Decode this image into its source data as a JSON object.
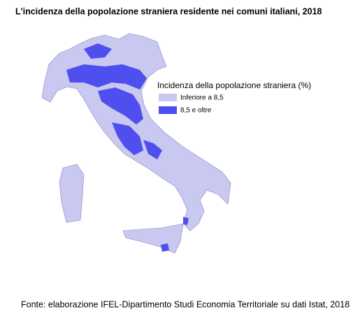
{
  "title": "L'incidenza della popolazione straniera residente nei comuni italiani, 2018",
  "legend": {
    "title": "Incidenza della popolazione straniera (%)",
    "items": [
      {
        "label": "Inferiore a 8,5",
        "color": "#c8c8f0"
      },
      {
        "label": "8,5 e oltre",
        "color": "#4f4ff0"
      }
    ]
  },
  "source": "Fonte: elaborazione IFEL-Dipartimento Studi Economia Territoriale su dati Istat, 2018"
}
